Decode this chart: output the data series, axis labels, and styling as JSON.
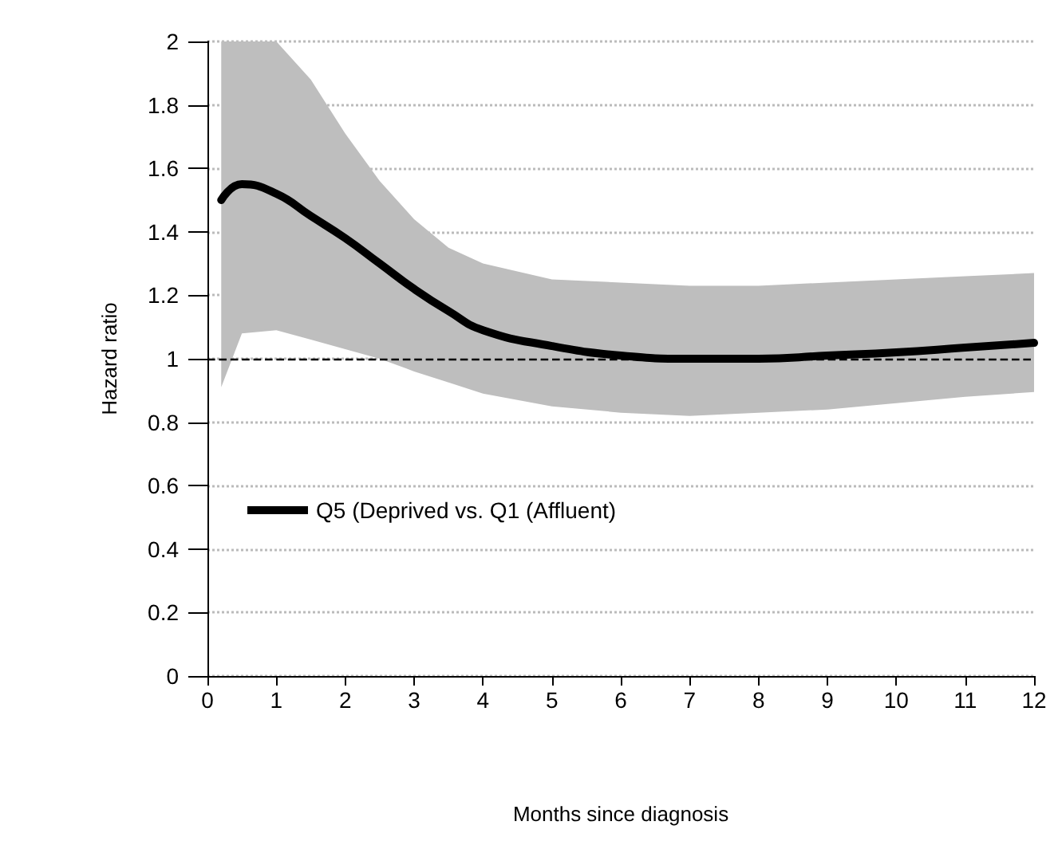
{
  "chart_data": {
    "type": "line",
    "xlabel": "Months since diagnosis",
    "ylabel": "Hazard ratio",
    "x": [
      0.2,
      0.5,
      1,
      1.5,
      2,
      2.5,
      3,
      3.5,
      4,
      5,
      6,
      7,
      8,
      9,
      10,
      11,
      12
    ],
    "series": [
      {
        "name": "Q5 (Deprived vs. Q1 (Affluent)",
        "color": "#000000",
        "values": [
          1.5,
          1.55,
          1.52,
          1.45,
          1.38,
          1.3,
          1.22,
          1.15,
          1.09,
          1.04,
          1.01,
          1.0,
          1.0,
          1.01,
          1.02,
          1.035,
          1.05
        ],
        "upper": [
          2,
          2,
          2,
          1.88,
          1.71,
          1.56,
          1.44,
          1.35,
          1.3,
          1.25,
          1.24,
          1.23,
          1.23,
          1.24,
          1.25,
          1.26,
          1.27
        ],
        "lower": [
          0.91,
          1.08,
          1.09,
          1.06,
          1.03,
          1.0,
          0.96,
          0.925,
          0.89,
          0.85,
          0.83,
          0.82,
          0.83,
          0.84,
          0.86,
          0.88,
          0.895
        ]
      }
    ],
    "xlim": [
      0,
      12
    ],
    "xticks": [
      0,
      1,
      2,
      3,
      4,
      5,
      6,
      7,
      8,
      9,
      10,
      11,
      12
    ],
    "ylim": [
      0,
      2
    ],
    "yticks": [
      0,
      0.2,
      0.4,
      0.6,
      0.8,
      1,
      1.2,
      1.4,
      1.6,
      1.8,
      2
    ],
    "ref_lines": [
      {
        "axis": "y",
        "value": 1,
        "color": "#000000",
        "line_style": "dashed"
      }
    ],
    "grid": "y",
    "legend": "left",
    "marker": "none",
    "line_style": "solid"
  }
}
